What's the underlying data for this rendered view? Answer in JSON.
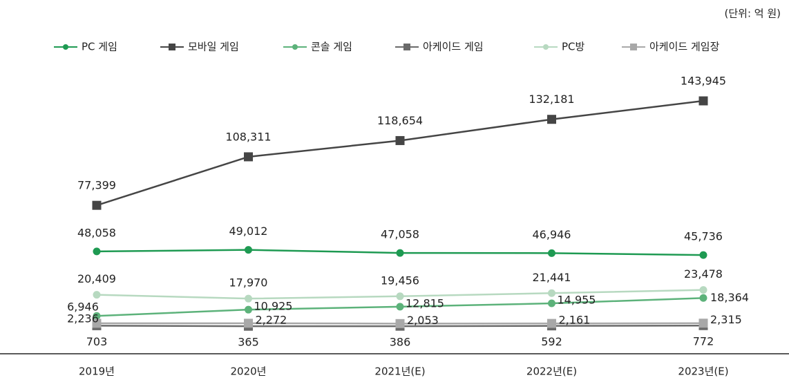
{
  "chart_data": {
    "type": "line",
    "unit_note": "(단위: 억 원)",
    "categories": [
      "2019년",
      "2020년",
      "2021년(E)",
      "2022년(E)",
      "2023년(E)"
    ],
    "series": [
      {
        "name": "PC 게임",
        "color": "#1e9a52",
        "marker": "circle",
        "values": [
          48058,
          49012,
          47058,
          46946,
          45736
        ],
        "value_labels": [
          "48,058",
          "49,012",
          "47,058",
          "46,946",
          "45,736"
        ]
      },
      {
        "name": "모바일 게임",
        "color": "#454545",
        "marker": "square",
        "values": [
          77399,
          108311,
          118654,
          132181,
          143945
        ],
        "value_labels": [
          "77,399",
          "108,311",
          "118,654",
          "132,181",
          "143,945"
        ]
      },
      {
        "name": "콘솔 게임",
        "color": "#5cb27a",
        "marker": "circle",
        "values": [
          6946,
          10925,
          12815,
          14955,
          18364
        ],
        "value_labels": [
          "6,946",
          "10,925",
          "12,815",
          "14,955",
          "18,364"
        ]
      },
      {
        "name": "아케이드 게임",
        "color": "#6a6a6a",
        "marker": "square",
        "values": [
          703,
          365,
          386,
          592,
          772
        ],
        "value_labels": [
          "703",
          "365",
          "386",
          "592",
          "772"
        ]
      },
      {
        "name": "PC방",
        "color": "#b7d9c0",
        "marker": "circle",
        "values": [
          20409,
          17970,
          19456,
          21441,
          23478
        ],
        "value_labels": [
          "20,409",
          "17,970",
          "19,456",
          "21,441",
          "23,478"
        ]
      },
      {
        "name": "아케이드 게임장",
        "color": "#a8a8a8",
        "marker": "square",
        "values": [
          2236,
          2272,
          2053,
          2161,
          2315
        ],
        "value_labels": [
          "2,236",
          "2,272",
          "2,053",
          "2,161",
          "2,315"
        ]
      }
    ]
  }
}
